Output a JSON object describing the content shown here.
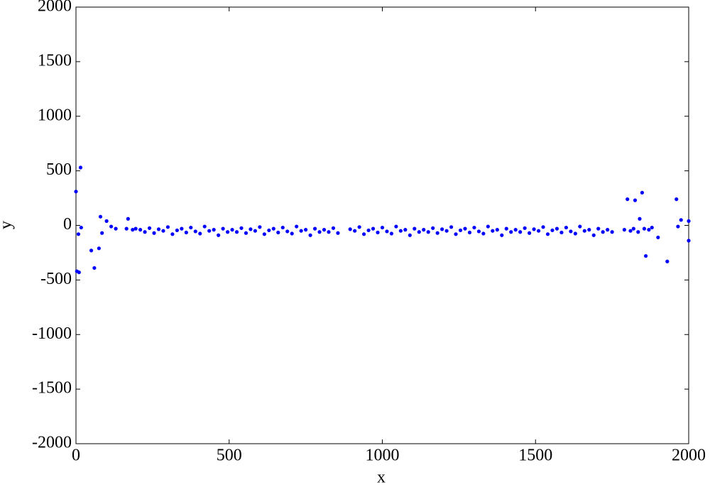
{
  "chart_data": {
    "type": "scatter",
    "x_label": "x",
    "y_label": "y",
    "color": "#0000ff",
    "xlim": [
      0,
      2000
    ],
    "ylim": [
      -2000,
      2000
    ],
    "xticks": [
      0,
      500,
      1000,
      1500,
      2000
    ],
    "yticks": [
      -2000,
      -1500,
      -1000,
      -500,
      0,
      500,
      1000,
      1500,
      2000
    ],
    "x": [
      0,
      3,
      8,
      10,
      15,
      17,
      50,
      60,
      75,
      80,
      85,
      100,
      115,
      130,
      165,
      170,
      185,
      195,
      210,
      225,
      240,
      255,
      270,
      285,
      300,
      315,
      330,
      345,
      360,
      375,
      390,
      405,
      420,
      435,
      450,
      465,
      480,
      495,
      510,
      525,
      540,
      555,
      570,
      585,
      600,
      615,
      630,
      645,
      660,
      675,
      690,
      705,
      720,
      735,
      750,
      765,
      780,
      795,
      810,
      825,
      840,
      855,
      895,
      910,
      925,
      940,
      955,
      970,
      985,
      1000,
      1015,
      1030,
      1045,
      1060,
      1075,
      1090,
      1105,
      1120,
      1135,
      1150,
      1165,
      1180,
      1195,
      1210,
      1225,
      1240,
      1255,
      1270,
      1285,
      1300,
      1315,
      1330,
      1345,
      1360,
      1375,
      1390,
      1405,
      1420,
      1435,
      1450,
      1465,
      1480,
      1495,
      1510,
      1525,
      1540,
      1555,
      1570,
      1585,
      1600,
      1615,
      1630,
      1645,
      1660,
      1675,
      1690,
      1705,
      1720,
      1735,
      1750,
      1790,
      1800,
      1810,
      1820,
      1825,
      1835,
      1840,
      1848,
      1855,
      1860,
      1870,
      1880,
      1900,
      1930,
      1960,
      1965,
      1975,
      2000,
      2000
    ],
    "values": [
      310,
      -420,
      -80,
      -430,
      530,
      -20,
      -230,
      -390,
      -210,
      80,
      -70,
      40,
      -10,
      -30,
      -30,
      60,
      -40,
      -30,
      -40,
      -60,
      -25,
      -70,
      -35,
      -50,
      -15,
      -80,
      -45,
      -30,
      -65,
      -20,
      -55,
      -75,
      -10,
      -50,
      -40,
      -90,
      -30,
      -60,
      -40,
      -60,
      -25,
      -70,
      -35,
      -50,
      -15,
      -80,
      -45,
      -30,
      -65,
      -20,
      -55,
      -75,
      -10,
      -50,
      -40,
      -90,
      -30,
      -60,
      -40,
      -60,
      -25,
      -70,
      -35,
      -50,
      -15,
      -80,
      -45,
      -30,
      -65,
      -20,
      -55,
      -75,
      -10,
      -50,
      -40,
      -90,
      -30,
      -60,
      -40,
      -60,
      -25,
      -70,
      -35,
      -50,
      -15,
      -80,
      -45,
      -30,
      -65,
      -20,
      -55,
      -75,
      -10,
      -50,
      -40,
      -90,
      -30,
      -60,
      -40,
      -60,
      -25,
      -70,
      -35,
      -50,
      -15,
      -80,
      -45,
      -30,
      -65,
      -20,
      -55,
      -75,
      -10,
      -50,
      -40,
      -90,
      -30,
      -60,
      -40,
      -60,
      -40,
      240,
      -50,
      -30,
      230,
      -60,
      60,
      300,
      -30,
      -280,
      -40,
      -20,
      -110,
      -330,
      240,
      -10,
      50,
      40,
      -140
    ]
  }
}
